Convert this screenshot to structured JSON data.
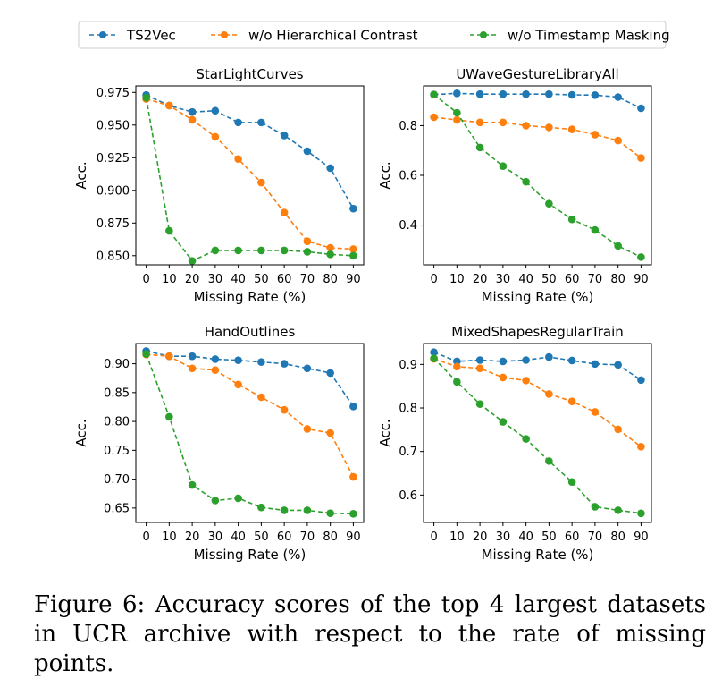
{
  "legend": {
    "placement": "top-center",
    "entries": [
      {
        "name": "TS2Vec",
        "color": "#1f77b4"
      },
      {
        "name": "w/o Hierarchical Contrast",
        "color": "#ff7f0e"
      },
      {
        "name": "w/o Timestamp Masking",
        "color": "#2ca02c"
      }
    ]
  },
  "chart_data": [
    {
      "type": "line",
      "title": "StarLightCurves",
      "xlabel": "Missing Rate (%)",
      "ylabel": "Acc.",
      "x": [
        0,
        10,
        20,
        30,
        40,
        50,
        60,
        70,
        80,
        90
      ],
      "xticks": [
        "0",
        "10",
        "20",
        "30",
        "40",
        "50",
        "60",
        "70",
        "80",
        "90"
      ],
      "ylim": [
        0.843,
        0.98
      ],
      "yticks": [
        "0.850",
        "0.875",
        "0.900",
        "0.925",
        "0.950",
        "0.975"
      ],
      "ytick_values": [
        0.85,
        0.875,
        0.9,
        0.925,
        0.95,
        0.975
      ],
      "grid": false,
      "series": [
        {
          "name": "TS2Vec",
          "color": "#1f77b4",
          "values": [
            0.973,
            0.965,
            0.96,
            0.961,
            0.952,
            0.952,
            0.942,
            0.93,
            0.917,
            0.886
          ]
        },
        {
          "name": "w/o Hierarchical Contrast",
          "color": "#ff7f0e",
          "values": [
            0.97,
            0.965,
            0.954,
            0.941,
            0.924,
            0.906,
            0.883,
            0.861,
            0.856,
            0.855
          ]
        },
        {
          "name": "w/o Timestamp Masking",
          "color": "#2ca02c",
          "values": [
            0.971,
            0.869,
            0.846,
            0.854,
            0.854,
            0.854,
            0.854,
            0.853,
            0.851,
            0.85
          ]
        }
      ]
    },
    {
      "type": "line",
      "title": "UWaveGestureLibraryAll",
      "xlabel": "Missing Rate (%)",
      "ylabel": "Acc.",
      "x": [
        0,
        10,
        20,
        30,
        40,
        50,
        60,
        70,
        80,
        90
      ],
      "xticks": [
        "0",
        "10",
        "20",
        "30",
        "40",
        "50",
        "60",
        "70",
        "80",
        "90"
      ],
      "ylim": [
        0.24,
        0.96
      ],
      "yticks": [
        "0.4",
        "0.6",
        "0.8"
      ],
      "ytick_values": [
        0.4,
        0.6,
        0.8
      ],
      "grid": false,
      "series": [
        {
          "name": "TS2Vec",
          "color": "#1f77b4",
          "values": [
            0.925,
            0.93,
            0.927,
            0.927,
            0.927,
            0.927,
            0.924,
            0.923,
            0.915,
            0.87
          ]
        },
        {
          "name": "w/o Hierarchical Contrast",
          "color": "#ff7f0e",
          "values": [
            0.834,
            0.823,
            0.813,
            0.813,
            0.8,
            0.793,
            0.785,
            0.764,
            0.74,
            0.67
          ]
        },
        {
          "name": "w/o Timestamp Masking",
          "color": "#2ca02c",
          "values": [
            0.925,
            0.852,
            0.712,
            0.637,
            0.574,
            0.486,
            0.423,
            0.38,
            0.316,
            0.271
          ]
        }
      ]
    },
    {
      "type": "line",
      "title": "HandOutlines",
      "xlabel": "Missing Rate (%)",
      "ylabel": "Acc.",
      "x": [
        0,
        10,
        20,
        30,
        40,
        50,
        60,
        70,
        80,
        90
      ],
      "xticks": [
        "0",
        "10",
        "20",
        "30",
        "40",
        "50",
        "60",
        "70",
        "80",
        "90"
      ],
      "ylim": [
        0.625,
        0.935
      ],
      "yticks": [
        "0.65",
        "0.70",
        "0.75",
        "0.80",
        "0.85",
        "0.90"
      ],
      "ytick_values": [
        0.65,
        0.7,
        0.75,
        0.8,
        0.85,
        0.9
      ],
      "grid": false,
      "series": [
        {
          "name": "TS2Vec",
          "color": "#1f77b4",
          "values": [
            0.922,
            0.913,
            0.913,
            0.908,
            0.906,
            0.903,
            0.9,
            0.892,
            0.884,
            0.826
          ]
        },
        {
          "name": "w/o Hierarchical Contrast",
          "color": "#ff7f0e",
          "values": [
            0.916,
            0.913,
            0.892,
            0.889,
            0.864,
            0.842,
            0.82,
            0.787,
            0.78,
            0.704
          ]
        },
        {
          "name": "w/o Timestamp Masking",
          "color": "#2ca02c",
          "values": [
            0.917,
            0.808,
            0.69,
            0.663,
            0.667,
            0.651,
            0.646,
            0.646,
            0.641,
            0.64
          ]
        }
      ]
    },
    {
      "type": "line",
      "title": "MixedShapesRegularTrain",
      "xlabel": "Missing Rate (%)",
      "ylabel": "Acc.",
      "x": [
        0,
        10,
        20,
        30,
        40,
        50,
        60,
        70,
        80,
        90
      ],
      "xticks": [
        "0",
        "10",
        "20",
        "30",
        "40",
        "50",
        "60",
        "70",
        "80",
        "90"
      ],
      "ylim": [
        0.537,
        0.948
      ],
      "yticks": [
        "0.6",
        "0.7",
        "0.8",
        "0.9"
      ],
      "ytick_values": [
        0.6,
        0.7,
        0.8,
        0.9
      ],
      "grid": false,
      "series": [
        {
          "name": "TS2Vec",
          "color": "#1f77b4",
          "values": [
            0.928,
            0.907,
            0.91,
            0.907,
            0.91,
            0.917,
            0.909,
            0.901,
            0.899,
            0.864
          ]
        },
        {
          "name": "w/o Hierarchical Contrast",
          "color": "#ff7f0e",
          "values": [
            0.913,
            0.895,
            0.891,
            0.87,
            0.863,
            0.832,
            0.815,
            0.791,
            0.751,
            0.711
          ]
        },
        {
          "name": "w/o Timestamp Masking",
          "color": "#2ca02c",
          "values": [
            0.914,
            0.86,
            0.809,
            0.768,
            0.729,
            0.678,
            0.63,
            0.573,
            0.565,
            0.558
          ]
        }
      ]
    }
  ],
  "caption": "Figure 6: Accuracy scores of the top 4 largest datasets in UCR archive with respect to the rate of missing points."
}
